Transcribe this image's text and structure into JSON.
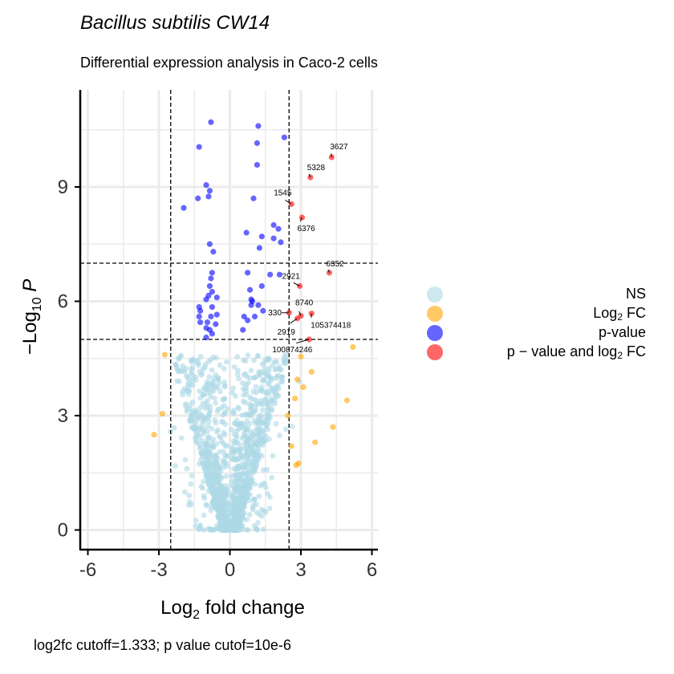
{
  "title": "Bacillus subtilis CW14",
  "subtitle": "Differential expression analysis in Caco-2 cells",
  "caption": "log2fc cutoff=1.333; p value cutof=10e-6",
  "chart_data": {
    "type": "scatter",
    "xlabel": "Log2 fold change",
    "ylabel": "-Log10 P",
    "xlim": [
      -6.3,
      6.3
    ],
    "ylim": [
      -0.55,
      11.6
    ],
    "x_ticks": [
      -6,
      -3,
      0,
      3,
      6
    ],
    "x_tick_labels": [
      "-6",
      "-3",
      "0",
      "3",
      "6"
    ],
    "y_ticks": [
      0,
      3,
      6,
      9
    ],
    "y_tick_labels": [
      "0",
      "3",
      "6",
      "9"
    ],
    "grid": true,
    "legend_position": "right",
    "cutoffs": {
      "x": [
        -2.5,
        2.5
      ],
      "y": [
        5,
        7
      ]
    },
    "colors": {
      "NS": "#add8e6",
      "log2fc": "#ffa500",
      "pvalue": "#0000ff",
      "both": "#ff0000"
    },
    "legend": [
      {
        "label": "NS",
        "color": "#add8e6"
      },
      {
        "label": "Log2 FC",
        "color": "#ffa500"
      },
      {
        "label": "p-value",
        "color": "#0000ff"
      },
      {
        "label": "p−value and log2 FC",
        "color": "#ff0000"
      }
    ],
    "series": [
      {
        "name": "p−value and log2 FC",
        "color": "#ff0000",
        "points": [
          {
            "x": 4.3,
            "y": 9.78,
            "label": "3627"
          },
          {
            "x": 3.4,
            "y": 9.25,
            "label": "5328"
          },
          {
            "x": 2.6,
            "y": 8.55,
            "label": "1545"
          },
          {
            "x": 3.05,
            "y": 8.2,
            "label": "6376"
          },
          {
            "x": 4.2,
            "y": 6.75,
            "label": "6352"
          },
          {
            "x": 2.95,
            "y": 6.4,
            "label": "2921"
          },
          {
            "x": 2.5,
            "y": 5.7,
            "label": "330"
          },
          {
            "x": 3.0,
            "y": 5.62,
            "label": "8740"
          },
          {
            "x": 3.45,
            "y": 5.68,
            "label": "105374418"
          },
          {
            "x": 2.85,
            "y": 5.55,
            "label": "2919"
          },
          {
            "x": 3.35,
            "y": 5.0,
            "label": "100874246"
          }
        ]
      },
      {
        "name": "p-value",
        "color": "#0000ff",
        "points": [
          {
            "x": -0.8,
            "y": 10.7
          },
          {
            "x": 1.2,
            "y": 10.6
          },
          {
            "x": 2.3,
            "y": 10.3
          },
          {
            "x": 1.15,
            "y": 10.15
          },
          {
            "x": -1.3,
            "y": 10.05
          },
          {
            "x": 1.15,
            "y": 9.58
          },
          {
            "x": -1.0,
            "y": 9.05
          },
          {
            "x": -0.85,
            "y": 8.9
          },
          {
            "x": -0.9,
            "y": 8.75
          },
          {
            "x": -1.35,
            "y": 8.7
          },
          {
            "x": 1.0,
            "y": 8.7
          },
          {
            "x": -1.95,
            "y": 8.45
          },
          {
            "x": 1.85,
            "y": 8.0
          },
          {
            "x": 2.05,
            "y": 7.9
          },
          {
            "x": 0.7,
            "y": 7.8
          },
          {
            "x": 1.35,
            "y": 7.7
          },
          {
            "x": 1.85,
            "y": 7.65
          },
          {
            "x": 2.15,
            "y": 7.55
          },
          {
            "x": 1.25,
            "y": 7.4
          },
          {
            "x": -0.85,
            "y": 7.5
          },
          {
            "x": -0.7,
            "y": 7.3
          },
          {
            "x": -0.75,
            "y": 6.75
          },
          {
            "x": -0.8,
            "y": 6.6
          },
          {
            "x": 0.75,
            "y": 6.75
          },
          {
            "x": 1.7,
            "y": 6.7
          },
          {
            "x": 2.1,
            "y": 6.7
          },
          {
            "x": -0.85,
            "y": 6.4
          },
          {
            "x": -0.75,
            "y": 6.25
          },
          {
            "x": -0.9,
            "y": 6.15
          },
          {
            "x": 0.85,
            "y": 6.3
          },
          {
            "x": 1.35,
            "y": 6.4
          },
          {
            "x": -1.0,
            "y": 6.05
          },
          {
            "x": -0.55,
            "y": 6.1
          },
          {
            "x": 0.9,
            "y": 6.05
          },
          {
            "x": 0.95,
            "y": 6.0
          },
          {
            "x": -1.3,
            "y": 5.85
          },
          {
            "x": -1.25,
            "y": 5.75
          },
          {
            "x": -0.75,
            "y": 5.85
          },
          {
            "x": 0.9,
            "y": 5.9
          },
          {
            "x": 1.2,
            "y": 5.9
          },
          {
            "x": -1.3,
            "y": 5.6
          },
          {
            "x": -0.8,
            "y": 5.6
          },
          {
            "x": -0.55,
            "y": 5.65
          },
          {
            "x": 0.6,
            "y": 5.6
          },
          {
            "x": 1.4,
            "y": 5.75
          },
          {
            "x": 1.05,
            "y": 5.6
          },
          {
            "x": -1.25,
            "y": 5.45
          },
          {
            "x": -0.95,
            "y": 5.45
          },
          {
            "x": 0.75,
            "y": 5.5
          },
          {
            "x": -1.0,
            "y": 5.3
          },
          {
            "x": -0.85,
            "y": 5.25
          },
          {
            "x": -0.6,
            "y": 5.4
          },
          {
            "x": -1.0,
            "y": 5.05
          },
          {
            "x": 0.55,
            "y": 5.25
          },
          {
            "x": -0.75,
            "y": 5.15
          }
        ]
      },
      {
        "name": "Log2 FC",
        "color": "#ffa500",
        "points": [
          {
            "x": 5.2,
            "y": 4.8
          },
          {
            "x": -2.75,
            "y": 4.6
          },
          {
            "x": 3.0,
            "y": 4.55
          },
          {
            "x": 3.45,
            "y": 4.15
          },
          {
            "x": 2.85,
            "y": 3.95
          },
          {
            "x": 3.1,
            "y": 3.75
          },
          {
            "x": 2.75,
            "y": 3.45
          },
          {
            "x": 4.95,
            "y": 3.4
          },
          {
            "x": -2.85,
            "y": 3.05
          },
          {
            "x": 2.45,
            "y": 3.0
          },
          {
            "x": 4.35,
            "y": 2.7
          },
          {
            "x": -3.2,
            "y": 2.5
          },
          {
            "x": 3.6,
            "y": 2.3
          },
          {
            "x": 2.6,
            "y": 2.2
          },
          {
            "x": 2.9,
            "y": 1.75
          },
          {
            "x": 2.8,
            "y": 1.7
          }
        ]
      }
    ]
  }
}
